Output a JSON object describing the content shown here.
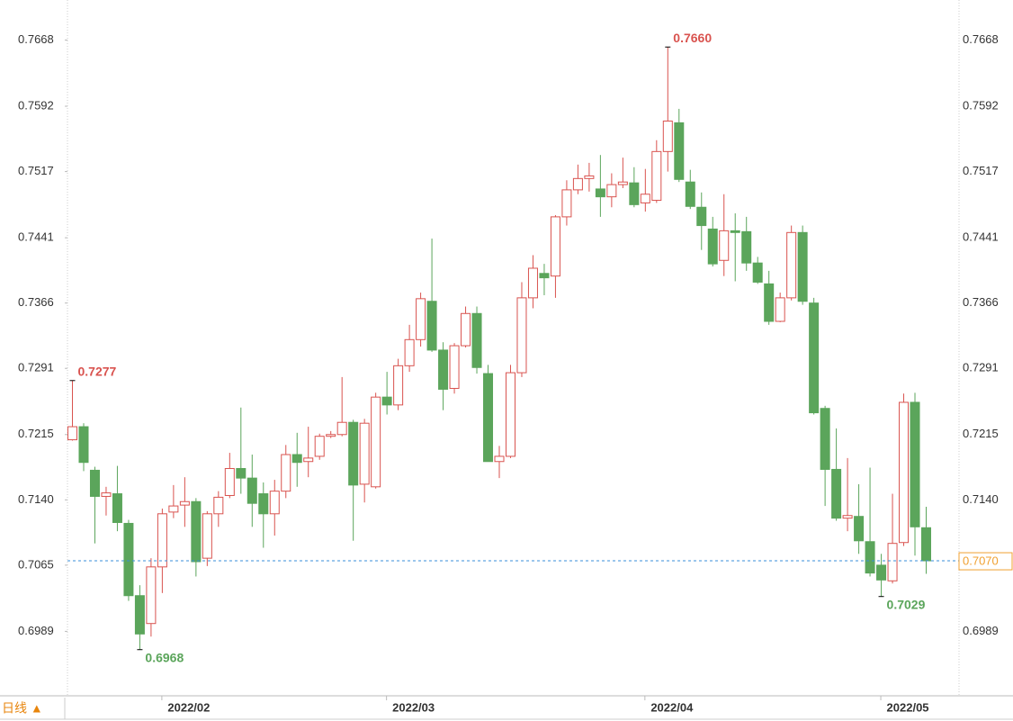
{
  "chart_data": {
    "type": "candlestick",
    "categories": [
      null,
      null,
      null,
      null,
      null,
      null,
      null,
      null,
      "2022/02",
      null,
      null,
      null,
      null,
      null,
      null,
      null,
      null,
      null,
      null,
      null,
      null,
      null,
      null,
      null,
      null,
      null,
      null,
      null,
      "2022/03",
      null,
      null,
      null,
      null,
      null,
      null,
      null,
      null,
      null,
      null,
      null,
      null,
      null,
      null,
      null,
      null,
      null,
      null,
      null,
      null,
      null,
      null,
      "2022/04",
      null,
      null,
      null,
      null,
      null,
      null,
      null,
      null,
      null,
      null,
      null,
      null,
      null,
      null,
      null,
      null,
      null,
      null,
      null,
      null,
      "2022/05",
      null,
      null,
      null,
      null
    ],
    "open": [
      0.7209,
      0.7224,
      0.7174,
      0.7144,
      0.7147,
      0.7113,
      0.703,
      0.6998,
      0.7063,
      0.7126,
      0.7134,
      0.7138,
      0.7073,
      0.7124,
      0.7145,
      0.7176,
      0.7165,
      0.7147,
      0.7124,
      0.715,
      0.7192,
      0.7184,
      0.719,
      0.7213,
      0.7215,
      0.7229,
      0.7158,
      0.7155,
      0.7258,
      0.7249,
      0.7294,
      0.7324,
      0.7368,
      0.7312,
      0.7268,
      0.7317,
      0.7354,
      0.7285,
      0.7184,
      0.719,
      0.7286,
      0.7372,
      0.74,
      0.7397,
      0.7465,
      0.7496,
      0.7509,
      0.7497,
      0.7488,
      0.7502,
      0.7504,
      0.7481,
      0.7484,
      0.754,
      0.7573,
      0.7505,
      0.7476,
      0.7451,
      0.7415,
      0.7449,
      0.7448,
      0.7412,
      0.7388,
      0.7345,
      0.7372,
      0.7447,
      0.7366,
      0.7245,
      0.7175,
      0.7119,
      0.7121,
      0.7092,
      0.7065,
      0.7047,
      0.7091,
      0.7252,
      0.7108
    ],
    "high": [
      0.7277,
      0.7228,
      0.7178,
      0.7155,
      0.7179,
      0.7117,
      0.7042,
      0.7073,
      0.713,
      0.7157,
      0.7166,
      0.7142,
      0.7127,
      0.715,
      0.7194,
      0.7246,
      0.7192,
      0.716,
      0.7163,
      0.7203,
      0.7217,
      0.7224,
      0.7216,
      0.7219,
      0.7281,
      0.7232,
      0.7233,
      0.7263,
      0.7287,
      0.7302,
      0.7341,
      0.7378,
      0.744,
      0.7321,
      0.732,
      0.7362,
      0.7362,
      0.7295,
      0.7202,
      0.7295,
      0.739,
      0.7421,
      0.7411,
      0.7467,
      0.7507,
      0.7525,
      0.7527,
      0.7536,
      0.7515,
      0.7533,
      0.7522,
      0.752,
      0.7553,
      0.766,
      0.7589,
      0.7519,
      0.7493,
      0.7465,
      0.7491,
      0.7469,
      0.7465,
      0.7419,
      0.7403,
      0.7378,
      0.7455,
      0.7455,
      0.7372,
      0.7248,
      0.7222,
      0.7188,
      0.7158,
      0.7177,
      0.7078,
      0.7147,
      0.7262,
      0.7263,
      0.7132
    ],
    "low": [
      0.7208,
      0.7173,
      0.709,
      0.7122,
      0.7104,
      0.7024,
      0.6968,
      0.6983,
      0.7033,
      0.7119,
      0.7109,
      0.7052,
      0.7064,
      0.7109,
      0.7142,
      0.7147,
      0.7109,
      0.7085,
      0.7099,
      0.7142,
      0.7155,
      0.7166,
      0.7186,
      0.7211,
      0.7213,
      0.7093,
      0.7137,
      0.7153,
      0.7238,
      0.7243,
      0.7287,
      0.7316,
      0.731,
      0.7243,
      0.7262,
      0.7315,
      0.7285,
      0.7184,
      0.7165,
      0.7188,
      0.7281,
      0.736,
      0.7375,
      0.7372,
      0.7455,
      0.7491,
      0.7494,
      0.7465,
      0.7476,
      0.7498,
      0.7476,
      0.7471,
      0.7481,
      0.7517,
      0.7505,
      0.7474,
      0.7427,
      0.7408,
      0.7397,
      0.7391,
      0.7403,
      0.7388,
      0.7341,
      0.7344,
      0.7369,
      0.7364,
      0.7238,
      0.7133,
      0.7116,
      0.7104,
      0.7078,
      0.7052,
      0.7029,
      0.7044,
      0.7087,
      0.7076,
      0.7055
    ],
    "close": [
      0.7224,
      0.7183,
      0.7144,
      0.7148,
      0.7114,
      0.703,
      0.6986,
      0.7063,
      0.7124,
      0.7133,
      0.7138,
      0.7069,
      0.7124,
      0.7143,
      0.7176,
      0.7165,
      0.7136,
      0.7124,
      0.715,
      0.7192,
      0.7183,
      0.7188,
      0.7213,
      0.7215,
      0.7229,
      0.7157,
      0.7228,
      0.7258,
      0.7249,
      0.7294,
      0.7324,
      0.7371,
      0.7312,
      0.7267,
      0.7317,
      0.7354,
      0.7292,
      0.7184,
      0.719,
      0.7286,
      0.7372,
      0.7406,
      0.7395,
      0.7465,
      0.7496,
      0.7509,
      0.7512,
      0.7488,
      0.7502,
      0.7505,
      0.7479,
      0.7491,
      0.754,
      0.7575,
      0.7508,
      0.7477,
      0.7455,
      0.7411,
      0.7449,
      0.7447,
      0.7412,
      0.739,
      0.7345,
      0.7372,
      0.7447,
      0.7368,
      0.724,
      0.7175,
      0.7119,
      0.7122,
      0.7093,
      0.7056,
      0.7048,
      0.709,
      0.7252,
      0.7109,
      0.707
    ],
    "up_color": "#d9534f",
    "down_color": "#5ba55b",
    "ylim": [
      0.6915,
      0.7714
    ],
    "yticks": [
      0.6989,
      0.7065,
      {
        "value": 0.714,
        "label": "0.7140"
      },
      0.7215,
      0.7291,
      0.7366,
      0.7441,
      0.7517,
      0.7592,
      0.7668
    ],
    "marked_highs": [
      {
        "value": 0.7277,
        "label": "0.7277"
      },
      {
        "value": 0.766,
        "label": "0.7660"
      }
    ],
    "marked_lows": [
      {
        "value": 0.6968,
        "label": "0.6968"
      },
      {
        "value": 0.7029,
        "label": "0.7029"
      }
    ],
    "last_price": {
      "value": 0.707,
      "label": "0.7070"
    },
    "period_label": "日线 ▲"
  }
}
